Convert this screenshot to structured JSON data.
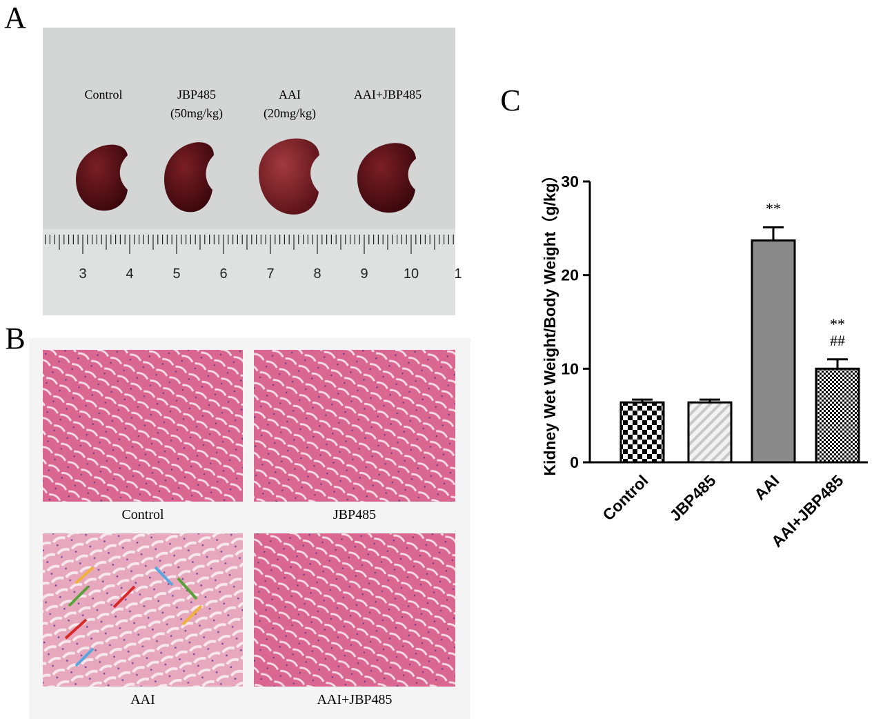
{
  "panel_labels": [
    "A",
    "B",
    "C"
  ],
  "photo_a": {
    "groups": [
      [
        "Control"
      ],
      [
        "JBP485",
        "(50mg/kg)"
      ],
      [
        "AAI",
        "(20mg/kg)"
      ],
      [
        "AAI+JBP485"
      ]
    ],
    "ruler_labels": [
      "3",
      "4",
      "5",
      "6",
      "7",
      "8",
      "9",
      "10",
      "1"
    ]
  },
  "photo_b": {
    "captions": [
      "Control",
      "JBP485",
      "AAI",
      "AAI+JBP485"
    ]
  },
  "chart_data": {
    "type": "bar",
    "ylabel": "Kidney Wet Weight/Body Weight（g/kg）",
    "categories": [
      "Control",
      "JBP485",
      "AAI",
      "AAI+JBP485"
    ],
    "values": [
      6.4,
      6.4,
      23.7,
      10.0
    ],
    "errors": [
      0.3,
      0.3,
      1.4,
      1.0
    ],
    "fills": [
      "checker",
      "hatch",
      "solid",
      "fine-checker"
    ],
    "colors": [
      "#000000",
      "#c8c8c8",
      "#8a8a8a",
      "#000000"
    ],
    "annotations": [
      {
        "category": 2,
        "lines": [
          "**"
        ]
      },
      {
        "category": 3,
        "lines": [
          "**",
          "##"
        ]
      }
    ],
    "ylim": [
      0,
      30
    ],
    "yticks": [
      0,
      10,
      20,
      30
    ]
  }
}
